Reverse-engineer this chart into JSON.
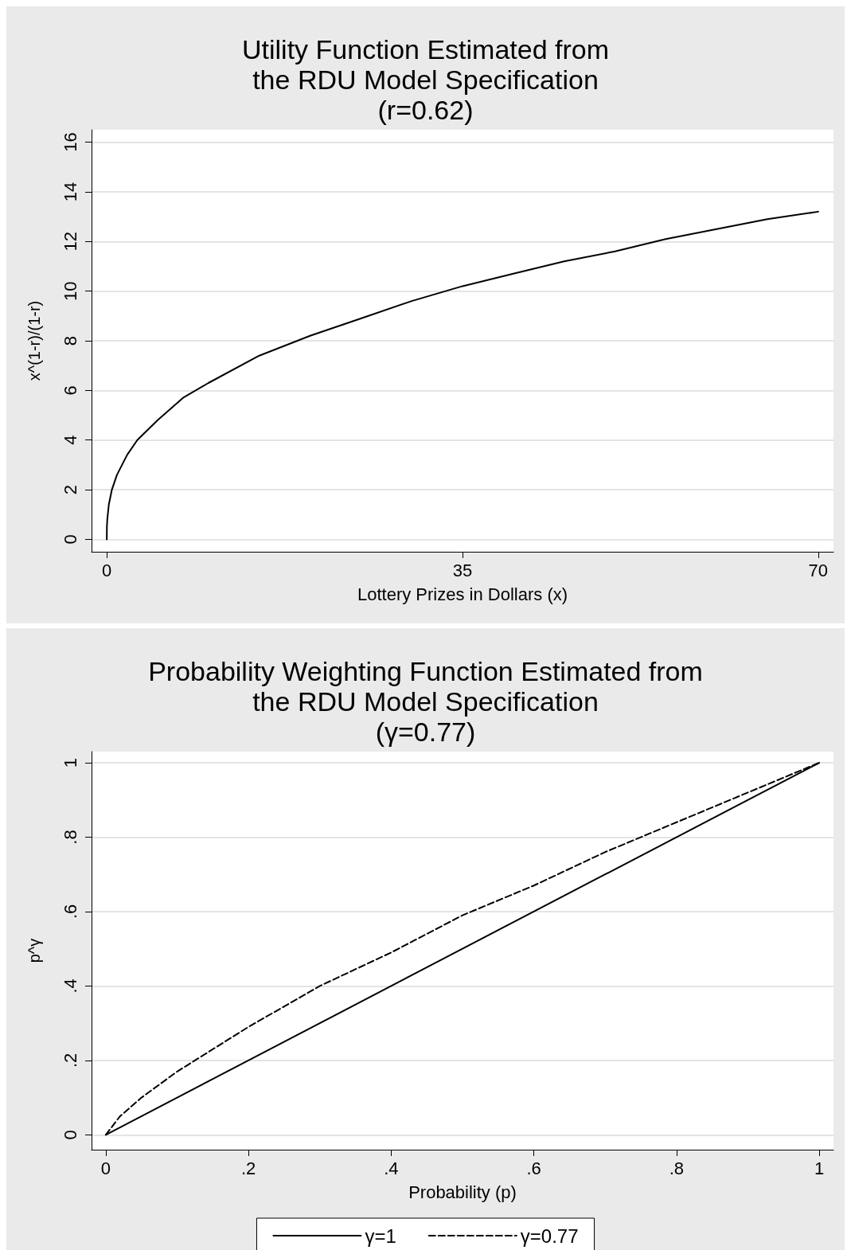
{
  "chart_data": [
    {
      "type": "line",
      "title": "Utility Function Estimated from\nthe RDU Model Specification\n(r=0.62)",
      "xlabel": "Lottery Prizes in Dollars (x)",
      "ylabel": "x^(1-r)/(1-r)",
      "xlim": [
        -1.5,
        71.5
      ],
      "xticks": [
        0,
        35,
        70
      ],
      "ylim": [
        -0.5,
        16.5
      ],
      "yticks": [
        0,
        2,
        4,
        6,
        8,
        10,
        12,
        14,
        16
      ],
      "grid": "y",
      "legend": false,
      "marker": "none",
      "series": [
        {
          "color": "#000000",
          "line_style": "solid",
          "x": [
            0,
            0.01,
            0.05,
            0.2,
            0.5,
            1,
            2,
            3,
            5,
            7.5,
            10,
            15,
            20,
            25,
            30,
            35,
            40,
            45,
            50,
            55,
            60,
            65,
            70
          ],
          "values": [
            0,
            0.5,
            0.8,
            1.4,
            2.0,
            2.6,
            3.4,
            4.0,
            4.8,
            5.7,
            6.3,
            7.4,
            8.2,
            8.9,
            9.6,
            10.2,
            10.7,
            11.2,
            11.6,
            12.1,
            12.5,
            12.9,
            13.2
          ]
        }
      ]
    },
    {
      "type": "line",
      "title": "Probability Weighting Function Estimated from\nthe RDU Model Specification\n(γ=0.77)",
      "xlabel": "Probability (p)",
      "ylabel": "p^γ",
      "xlim": [
        -0.02,
        1.02
      ],
      "xticks": [
        {
          "value": 0,
          "label": "0"
        },
        {
          "value": 0.2,
          "label": ".2"
        },
        {
          "value": 0.4,
          "label": ".4"
        },
        {
          "value": 0.6,
          "label": ".6"
        },
        {
          "value": 0.8,
          "label": ".8"
        },
        {
          "value": 1,
          "label": "1"
        }
      ],
      "ylim": [
        -0.04,
        1.03
      ],
      "yticks": [
        {
          "value": 0,
          "label": "0"
        },
        {
          "value": 0.2,
          "label": ".2"
        },
        {
          "value": 0.4,
          "label": ".4"
        },
        {
          "value": 0.6,
          "label": ".6"
        },
        {
          "value": 0.8,
          "label": ".8"
        },
        {
          "value": 1,
          "label": "1"
        }
      ],
      "grid": "y",
      "legend": "bottom",
      "marker": "none",
      "series": [
        {
          "name": "γ=1",
          "color": "#000000",
          "line_style": "solid",
          "x": [
            0,
            1
          ],
          "values": [
            0,
            1
          ]
        },
        {
          "name": "γ=0.77",
          "color": "#000000",
          "line_style": "dashed",
          "x": [
            0,
            0.02,
            0.05,
            0.1,
            0.2,
            0.3,
            0.4,
            0.5,
            0.6,
            0.7,
            0.8,
            0.9,
            1
          ],
          "values": [
            0,
            0.05,
            0.1,
            0.17,
            0.29,
            0.4,
            0.49,
            0.59,
            0.67,
            0.76,
            0.84,
            0.92,
            1
          ]
        }
      ]
    }
  ]
}
